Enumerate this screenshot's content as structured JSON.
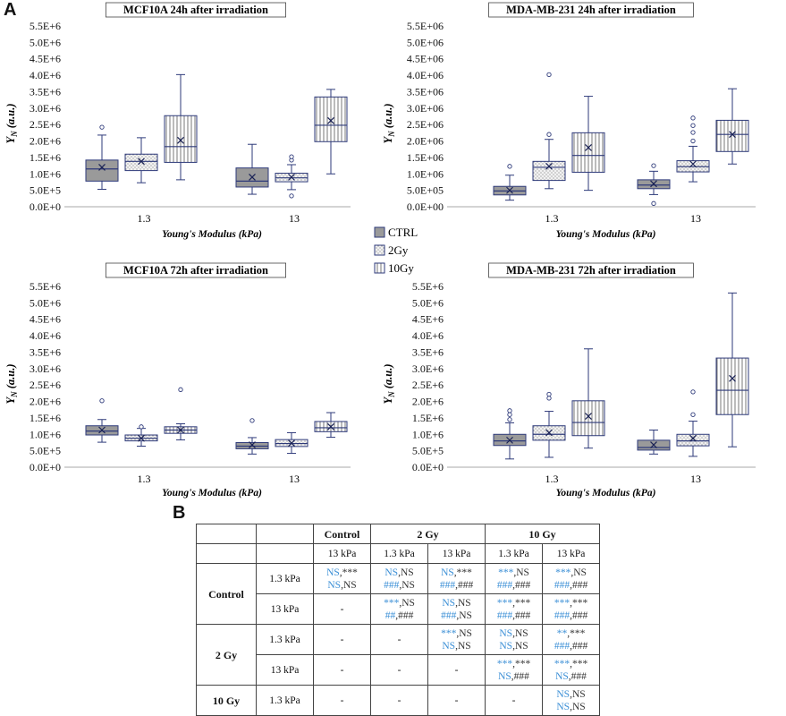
{
  "panel_a_label": "A",
  "panel_b_label": "B",
  "legend": {
    "items": [
      {
        "label": "CTRL",
        "pattern": "solid-gray"
      },
      {
        "label": "2Gy",
        "pattern": "dots"
      },
      {
        "label": "10Gy",
        "pattern": "vertical-lines"
      }
    ]
  },
  "colors": {
    "stroke": "#2e3a7a",
    "ctrl_fill": "#9a9a9a",
    "dots_bg": "#f2f2f2",
    "line_bg": "#ffffff"
  },
  "chart_data": [
    {
      "type": "box",
      "title": "MCF10A 24h after irradiation",
      "ylabel": "Y_N (a.u.)",
      "xlabel": "Young's Modulus (kPa)",
      "yticks": [
        "0.0E+0",
        "5.0E+5",
        "1.0E+6",
        "1.5E+6",
        "2.0E+6",
        "2.5E+6",
        "3.0E+6",
        "3.5E+6",
        "4.0E+6",
        "4.5E+6",
        "5.0E+6",
        "5.5E+6"
      ],
      "ylim": [
        0,
        5500000
      ],
      "categories": [
        "1.3",
        "13"
      ],
      "series": [
        {
          "name": "CTRL",
          "boxes": [
            {
              "min": 530000,
              "q1": 780000,
              "median": 1150000,
              "q3": 1420000,
              "max": 2180000,
              "mean": 1200000,
              "outliers": [
                2420000
              ]
            },
            {
              "min": 380000,
              "q1": 600000,
              "median": 780000,
              "q3": 1180000,
              "max": 1900000,
              "mean": 900000,
              "outliers": []
            }
          ]
        },
        {
          "name": "2Gy",
          "boxes": [
            {
              "min": 730000,
              "q1": 1100000,
              "median": 1380000,
              "q3": 1600000,
              "max": 2100000,
              "mean": 1380000,
              "outliers": []
            },
            {
              "min": 520000,
              "q1": 760000,
              "median": 880000,
              "q3": 1020000,
              "max": 1280000,
              "mean": 900000,
              "outliers": [
                1420000,
                1520000,
                330000
              ]
            }
          ]
        },
        {
          "name": "10Gy",
          "boxes": [
            {
              "min": 820000,
              "q1": 1350000,
              "median": 1830000,
              "q3": 2770000,
              "max": 4020000,
              "mean": 2020000,
              "outliers": []
            },
            {
              "min": 1000000,
              "q1": 1980000,
              "median": 2480000,
              "q3": 3340000,
              "max": 3570000,
              "mean": 2620000,
              "outliers": []
            }
          ]
        }
      ]
    },
    {
      "type": "box",
      "title": "MDA-MB-231 24h after irradiation",
      "ylabel": "Y_N (a.u.)",
      "xlabel": "Young's Modulus (kPa)",
      "yticks": [
        "0.0E+00",
        "5.0E+05",
        "1.0E+06",
        "1.5E+06",
        "2.0E+06",
        "2.5E+06",
        "3.0E+06",
        "3.5E+06",
        "4.0E+06",
        "4.5E+06",
        "5.0E+06",
        "5.5E+06"
      ],
      "ylim": [
        0,
        5500000
      ],
      "categories": [
        "1.3",
        "13"
      ],
      "series": [
        {
          "name": "CTRL",
          "boxes": [
            {
              "min": 200000,
              "q1": 360000,
              "median": 480000,
              "q3": 620000,
              "max": 960000,
              "mean": 500000,
              "outliers": [
                1230000
              ]
            },
            {
              "min": 370000,
              "q1": 550000,
              "median": 660000,
              "q3": 820000,
              "max": 1080000,
              "mean": 700000,
              "outliers": [
                1250000,
                100000
              ]
            }
          ]
        },
        {
          "name": "2Gy",
          "boxes": [
            {
              "min": 550000,
              "q1": 800000,
              "median": 1200000,
              "q3": 1380000,
              "max": 2050000,
              "mean": 1230000,
              "outliers": [
                2200000,
                4020000
              ]
            },
            {
              "min": 760000,
              "q1": 1060000,
              "median": 1220000,
              "q3": 1400000,
              "max": 1840000,
              "mean": 1300000,
              "outliers": [
                2000000,
                2260000,
                2470000,
                2700000
              ]
            }
          ]
        },
        {
          "name": "10Gy",
          "boxes": [
            {
              "min": 500000,
              "q1": 1050000,
              "median": 1560000,
              "q3": 2250000,
              "max": 3360000,
              "mean": 1800000,
              "outliers": []
            },
            {
              "min": 1300000,
              "q1": 1680000,
              "median": 2200000,
              "q3": 2630000,
              "max": 3590000,
              "mean": 2200000,
              "outliers": []
            }
          ]
        }
      ]
    },
    {
      "type": "box",
      "title": "MCF10A 72h after irradiation",
      "ylabel": "Y_N (a.u.)",
      "xlabel": "Young's Modulus (kPa)",
      "yticks": [
        "0.0E+0",
        "5.0E+5",
        "1.0E+6",
        "1.5E+6",
        "2.0E+6",
        "2.5E+6",
        "3.0E+6",
        "3.5E+6",
        "4.0E+6",
        "4.5E+6",
        "5.0E+6",
        "5.5E+6"
      ],
      "ylim": [
        0,
        5500000
      ],
      "categories": [
        "1.3",
        "13"
      ],
      "series": [
        {
          "name": "CTRL",
          "boxes": [
            {
              "min": 760000,
              "q1": 980000,
              "median": 1100000,
              "q3": 1260000,
              "max": 1450000,
              "mean": 1130000,
              "outliers": [
                2020000
              ]
            },
            {
              "min": 400000,
              "q1": 560000,
              "median": 640000,
              "q3": 750000,
              "max": 900000,
              "mean": 680000,
              "outliers": [
                1420000
              ]
            }
          ]
        },
        {
          "name": "2Gy",
          "boxes": [
            {
              "min": 640000,
              "q1": 800000,
              "median": 880000,
              "q3": 980000,
              "max": 1180000,
              "mean": 880000,
              "outliers": [
                1230000
              ]
            },
            {
              "min": 420000,
              "q1": 630000,
              "median": 720000,
              "q3": 840000,
              "max": 1050000,
              "mean": 730000,
              "outliers": []
            }
          ]
        },
        {
          "name": "10Gy",
          "boxes": [
            {
              "min": 830000,
              "q1": 1030000,
              "median": 1130000,
              "q3": 1230000,
              "max": 1320000,
              "mean": 1130000,
              "outliers": [
                2360000
              ]
            },
            {
              "min": 910000,
              "q1": 1080000,
              "median": 1200000,
              "q3": 1390000,
              "max": 1660000,
              "mean": 1230000,
              "outliers": []
            }
          ]
        }
      ]
    },
    {
      "type": "box",
      "title": "MDA-MB-231 72h after irradiation",
      "ylabel": "Y_N (a.u.)",
      "xlabel": "Young's Modulus (kPa)",
      "yticks": [
        "0.0E+0",
        "5.0E+5",
        "1.0E+6",
        "1.5E+6",
        "2.0E+6",
        "2.5E+6",
        "3.0E+6",
        "3.5E+6",
        "4.0E+6",
        "4.5E+6",
        "5.0E+6",
        "5.5E+6"
      ],
      "ylim": [
        0,
        5500000
      ],
      "categories": [
        "1.3",
        "13"
      ],
      "series": [
        {
          "name": "CTRL",
          "boxes": [
            {
              "min": 250000,
              "q1": 660000,
              "median": 800000,
              "q3": 1000000,
              "max": 1350000,
              "mean": 820000,
              "outliers": [
                1450000,
                1600000,
                1720000
              ]
            },
            {
              "min": 400000,
              "q1": 520000,
              "median": 600000,
              "q3": 820000,
              "max": 1130000,
              "mean": 680000,
              "outliers": []
            }
          ]
        },
        {
          "name": "2Gy",
          "boxes": [
            {
              "min": 300000,
              "q1": 820000,
              "median": 1000000,
              "q3": 1260000,
              "max": 1700000,
              "mean": 1050000,
              "outliers": [
                2100000,
                2220000
              ]
            },
            {
              "min": 330000,
              "q1": 650000,
              "median": 800000,
              "q3": 1000000,
              "max": 1400000,
              "mean": 880000,
              "outliers": [
                1600000,
                2290000
              ]
            }
          ]
        },
        {
          "name": "10Gy",
          "boxes": [
            {
              "min": 580000,
              "q1": 960000,
              "median": 1360000,
              "q3": 2020000,
              "max": 3600000,
              "mean": 1550000,
              "outliers": []
            },
            {
              "min": 620000,
              "q1": 1600000,
              "median": 2340000,
              "q3": 3320000,
              "max": 5300000,
              "mean": 2700000,
              "outliers": []
            }
          ]
        }
      ]
    }
  ],
  "table": {
    "rows": [
      [
        "",
        "",
        "Control",
        "2 Gy",
        "10 Gy"
      ],
      [
        "",
        "",
        "13 kPa",
        "1.3 kPa",
        "13 kPa",
        "1.3 kPa",
        "13 kPa"
      ],
      [
        "Control",
        "1.3 kPa",
        "NS,***|NS,NS",
        "NS,NS|###,NS",
        "NS,***|###,###",
        "***,NS|###,###",
        "***,NS|###,###"
      ],
      [
        "",
        "13 kPa",
        "-",
        "***,NS|##,###",
        "NS,NS|###,NS",
        "***,***|###,###",
        "***,***|###,###"
      ],
      [
        "2 Gy",
        "1.3 kPa",
        "-",
        "-",
        "***,NS|NS,NS",
        "NS,NS|NS,NS",
        "**,***|###,###"
      ],
      [
        "",
        "13 kPa",
        "-",
        "-",
        "-",
        "***,***|NS,###",
        "***,***|NS,###"
      ],
      [
        "10 Gy",
        "1.3 kPa",
        "-",
        "-",
        "-",
        "-",
        "NS,NS|NS,NS"
      ]
    ]
  }
}
